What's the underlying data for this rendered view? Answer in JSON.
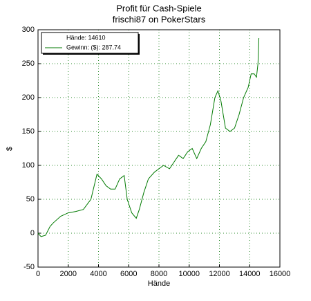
{
  "chart_data": {
    "type": "line",
    "title": "Profit für Cash-Spiele",
    "subtitle": "frischi87 on PokerStars",
    "xlabel": "Hände",
    "ylabel": "$",
    "legend_header": "Hände: 14610",
    "legend_position": "upper left",
    "grid": true,
    "xlim": [
      0,
      16000
    ],
    "xticks": [
      0,
      2000,
      4000,
      6000,
      8000,
      10000,
      12000,
      14000,
      16000
    ],
    "ylim": [
      -50,
      300
    ],
    "yticks": [
      -50,
      0,
      50,
      100,
      150,
      200,
      250,
      300
    ],
    "x": [
      0,
      200,
      500,
      800,
      1000,
      1500,
      2000,
      2500,
      3000,
      3500,
      3900,
      4200,
      4500,
      4800,
      5100,
      5400,
      5700,
      5900,
      6200,
      6500,
      6700,
      7000,
      7300,
      7700,
      8000,
      8300,
      8700,
      9000,
      9300,
      9600,
      9900,
      10200,
      10500,
      10800,
      11100,
      11400,
      11700,
      11900,
      12100,
      12400,
      12700,
      13000,
      13300,
      13600,
      13900,
      14100,
      14300,
      14450,
      14550,
      14610
    ],
    "series": [
      {
        "name": "Gewinn: ($): 287.74",
        "color": "#007a00",
        "values": [
          0,
          -5,
          -3,
          10,
          15,
          25,
          30,
          32,
          35,
          50,
          87,
          80,
          70,
          65,
          65,
          80,
          85,
          50,
          30,
          22,
          35,
          60,
          80,
          90,
          95,
          100,
          95,
          105,
          115,
          110,
          120,
          125,
          110,
          125,
          135,
          160,
          200,
          210,
          195,
          155,
          150,
          155,
          175,
          200,
          215,
          235,
          235,
          230,
          250,
          287.74
        ]
      }
    ]
  }
}
